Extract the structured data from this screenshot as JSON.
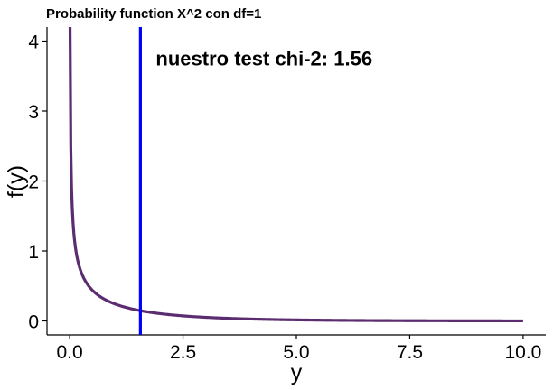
{
  "chart_data": {
    "type": "line",
    "title": "Probability function X^2 con df=1",
    "xlabel": "y",
    "ylabel": "f(y)",
    "xlim": [
      -0.5,
      10.5
    ],
    "ylim": [
      -0.2,
      4.2
    ],
    "xticks": [
      0.0,
      2.5,
      5.0,
      7.5,
      10.0
    ],
    "xtick_labels": [
      "0.0",
      "2.5",
      "5.0",
      "7.5",
      "10.0"
    ],
    "yticks": [
      0,
      1,
      2,
      3,
      4
    ],
    "ytick_labels": [
      "0",
      "1",
      "2",
      "3",
      "4"
    ],
    "grid": false,
    "series": [
      {
        "function": "chi-square density, df=1",
        "color": "#5b2c6f",
        "x": [
          0.0,
          0.25,
          0.5,
          0.75,
          1.0,
          1.56,
          2.0,
          2.5,
          3.0,
          4.0,
          5.0,
          6.0,
          7.5,
          10.0
        ],
        "y": [
          4.2,
          0.7,
          0.44,
          0.32,
          0.24,
          0.15,
          0.1,
          0.07,
          0.05,
          0.03,
          0.015,
          0.008,
          0.003,
          0.001
        ]
      }
    ],
    "vline": {
      "x": 1.56,
      "color": "#0000ff"
    },
    "annotation": {
      "text": "nuestro test chi-2: 1.56",
      "x": 1.9,
      "y": 3.65
    }
  }
}
